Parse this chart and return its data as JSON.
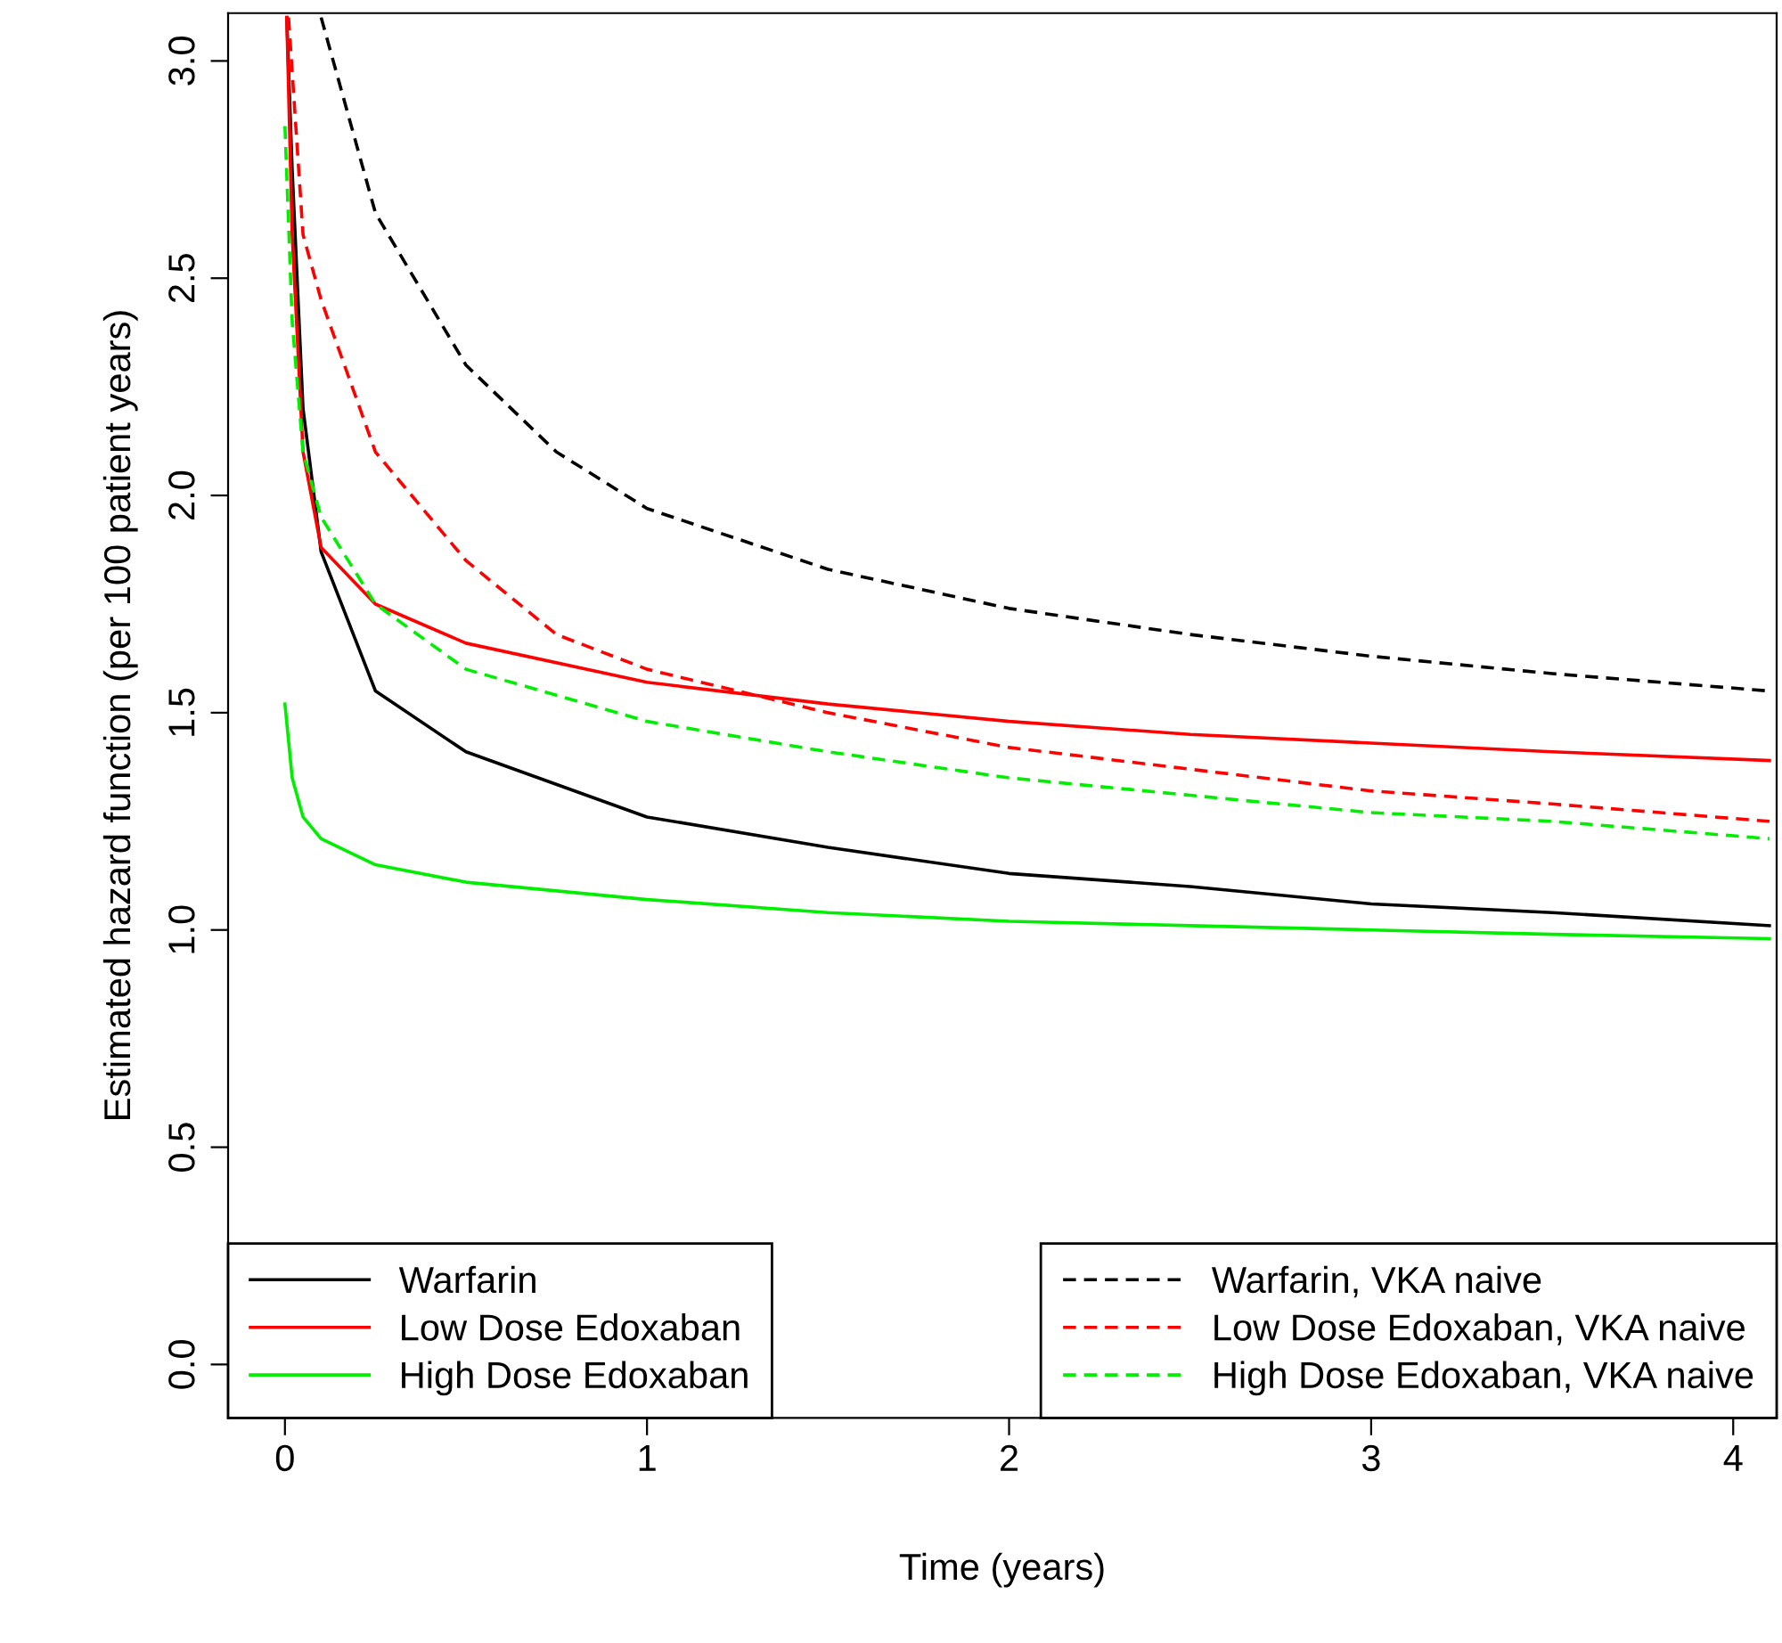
{
  "chart_data": {
    "type": "line",
    "xlabel": "Time (years)",
    "ylabel": "Estimated hazard function (per 100 patient years)",
    "xlim": [
      -0.157,
      4.12
    ],
    "ylim": [
      -0.123,
      3.11
    ],
    "xticks": [
      0,
      1,
      2,
      3,
      4
    ],
    "yticks": [
      {
        "value": 0,
        "label": "0.0"
      },
      {
        "value": 0.5,
        "label": "0.5"
      },
      {
        "value": 1,
        "label": "1.0"
      },
      {
        "value": 1.5,
        "label": "1.5"
      },
      {
        "value": 2,
        "label": "2.0"
      },
      {
        "value": 2.5,
        "label": "2.5"
      },
      {
        "value": 3,
        "label": "3.0"
      }
    ],
    "grid": false,
    "legend": "bottom",
    "marker": "none",
    "series": [
      {
        "name": "Warfarin",
        "color": "#000000",
        "line_style": "solid",
        "x": [
          0.005,
          0.02,
          0.05,
          0.1,
          0.25,
          0.5,
          1,
          1.5,
          2,
          2.5,
          3,
          3.5,
          4.1
        ],
        "values": [
          3.1,
          2.75,
          2.2,
          1.87,
          1.55,
          1.41,
          1.26,
          1.19,
          1.13,
          1.1,
          1.06,
          1.04,
          1.01
        ]
      },
      {
        "name": "Low Dose Edoxaban",
        "color": "#ff0000",
        "line_style": "solid",
        "x": [
          0.005,
          0.02,
          0.05,
          0.1,
          0.25,
          0.5,
          1,
          1.5,
          2,
          2.5,
          3,
          3.5,
          4.1
        ],
        "values": [
          3.1,
          2.6,
          2.1,
          1.88,
          1.75,
          1.66,
          1.57,
          1.52,
          1.48,
          1.45,
          1.43,
          1.41,
          1.39
        ]
      },
      {
        "name": "High Dose Edoxaban",
        "color": "#00ee00",
        "line_style": "solid",
        "x": [
          0,
          0.02,
          0.05,
          0.1,
          0.25,
          0.5,
          1,
          1.5,
          2,
          2.5,
          3,
          3.5,
          4.1
        ],
        "values": [
          1.52,
          1.35,
          1.26,
          1.21,
          1.15,
          1.11,
          1.07,
          1.04,
          1.02,
          1.01,
          1.0,
          0.99,
          0.98
        ]
      },
      {
        "name": "Warfarin, VKA naive",
        "color": "#000000",
        "line_style": "dashed",
        "x": [
          0.1,
          0.15,
          0.25,
          0.5,
          0.75,
          1,
          1.5,
          2,
          2.5,
          3,
          3.5,
          4.1
        ],
        "values": [
          3.1,
          2.95,
          2.65,
          2.3,
          2.1,
          1.97,
          1.83,
          1.74,
          1.68,
          1.63,
          1.59,
          1.55
        ]
      },
      {
        "name": "Low Dose Edoxaban, VKA naive",
        "color": "#ff0000",
        "line_style": "dashed",
        "x": [
          0.01,
          0.05,
          0.1,
          0.25,
          0.5,
          0.75,
          1,
          1.5,
          2,
          2.5,
          3,
          3.5,
          4.1
        ],
        "values": [
          3.1,
          2.6,
          2.45,
          2.1,
          1.85,
          1.68,
          1.6,
          1.5,
          1.42,
          1.37,
          1.32,
          1.29,
          1.25
        ]
      },
      {
        "name": "High Dose Edoxaban, VKA naive",
        "color": "#00ee00",
        "line_style": "dashed",
        "x": [
          0,
          0.02,
          0.05,
          0.1,
          0.25,
          0.5,
          1,
          1.5,
          2,
          2.5,
          3,
          3.5,
          4.1
        ],
        "values": [
          2.85,
          2.4,
          2.1,
          1.95,
          1.75,
          1.6,
          1.48,
          1.41,
          1.35,
          1.31,
          1.27,
          1.25,
          1.21
        ]
      }
    ]
  }
}
